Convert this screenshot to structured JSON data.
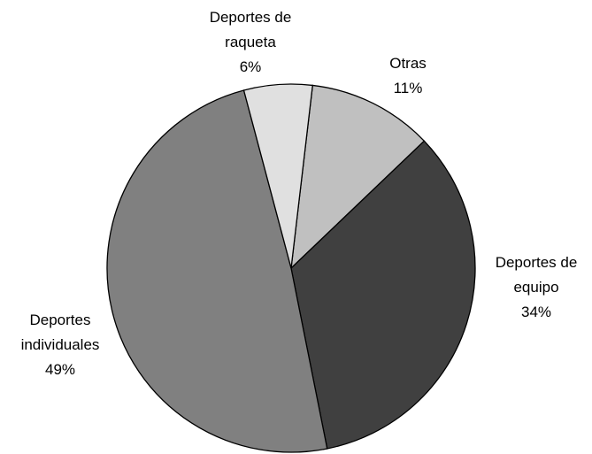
{
  "chart_data": {
    "type": "pie",
    "categories": [
      "Otras",
      "Deportes de equipo",
      "Deportes individuales",
      "Deportes de raqueta"
    ],
    "values": [
      11,
      34,
      49,
      6
    ],
    "value_labels": [
      "11%",
      "34%",
      "49%",
      "6%"
    ],
    "colors": [
      "#c0c0c0",
      "#404040",
      "#808080",
      "#e0e0e0"
    ]
  }
}
